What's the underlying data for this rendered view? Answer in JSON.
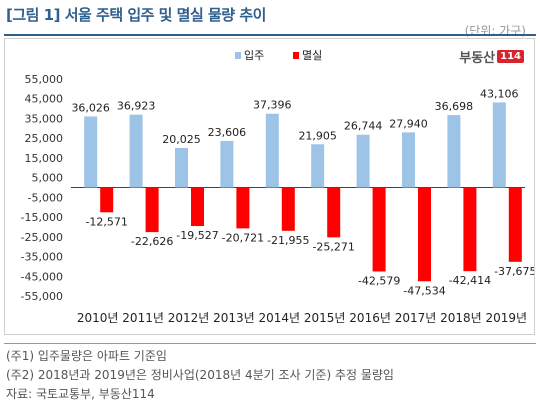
{
  "header": {
    "title": "[그림 1] 서울 주택 입주 및 멸실 물량 추이",
    "unit": "(단위: 가구)"
  },
  "logo": {
    "text": "부동산",
    "number": "114",
    "accent": "#d9232e"
  },
  "notes": [
    "(주1) 입주물량은 아파트 기준임",
    "(주2) 2018년과 2019년은 정비사업(2018년 4분기 조사 기준) 추정 물량임",
    "자료: 국토교통부, 부동산114"
  ],
  "chart_data": {
    "type": "bar",
    "categories": [
      "2010년",
      "2011년",
      "2012년",
      "2013년",
      "2014년",
      "2015년",
      "2016년",
      "2017년",
      "2018년",
      "2019년"
    ],
    "series": [
      {
        "name": "입주",
        "color": "#9dc3e6",
        "values": [
          36026,
          36923,
          20025,
          23606,
          37396,
          21905,
          26744,
          27940,
          36698,
          43106
        ]
      },
      {
        "name": "멸실",
        "color": "#ff0000",
        "values": [
          -12571,
          -22626,
          -19527,
          -20721,
          -21955,
          -25271,
          -42579,
          -47534,
          -42414,
          -37675
        ]
      }
    ],
    "series_labels": [
      [
        "36,026",
        "36,923",
        "20,025",
        "23,606",
        "37,396",
        "21,905",
        "26,744",
        "27,940",
        "36,698",
        "43,106"
      ],
      [
        "-12,571",
        "-22,626",
        "-19,527",
        "-20,721",
        "-21,955",
        "-25,271",
        "-42,579",
        "-47,534",
        "-42,414",
        "-37,675"
      ]
    ],
    "yticks": [
      55000,
      45000,
      35000,
      25000,
      15000,
      5000,
      -5000,
      -15000,
      -25000,
      -35000,
      -45000,
      -55000
    ],
    "ytick_labels": [
      "55,000",
      "45,000",
      "35,000",
      "25,000",
      "15,000",
      "5,000",
      "-5,000",
      "-15,000",
      "-25,000",
      "-35,000",
      "-45,000",
      "-55,000"
    ],
    "ylim": [
      -55000,
      55000
    ],
    "legend_position": "top-center",
    "grid": false
  }
}
